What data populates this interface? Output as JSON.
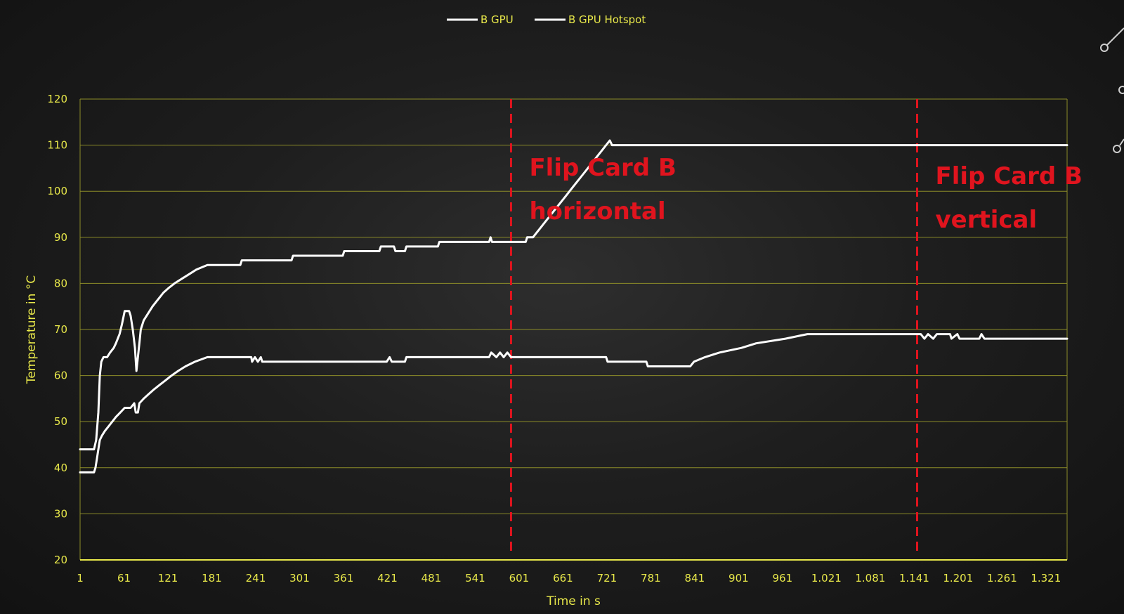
{
  "chart_data": {
    "type": "line",
    "title": "",
    "xlabel": "Time in s",
    "ylabel": "Temperature in °C",
    "xlim": [
      1,
      1350
    ],
    "ylim": [
      20,
      120
    ],
    "y_ticks": [
      20,
      30,
      40,
      50,
      60,
      70,
      80,
      90,
      100,
      110,
      120
    ],
    "x_tick_values": [
      1,
      61,
      121,
      181,
      241,
      301,
      361,
      421,
      481,
      541,
      601,
      661,
      721,
      781,
      841,
      901,
      961,
      1021,
      1081,
      1141,
      1201,
      1261,
      1321
    ],
    "x_tick_labels": [
      "1",
      "61",
      "121",
      "181",
      "241",
      "301",
      "361",
      "421",
      "481",
      "541",
      "601",
      "661",
      "721",
      "781",
      "841",
      "901",
      "961",
      "1.021",
      "1.081",
      "1.141",
      "1.201",
      "1.261",
      "1.321"
    ],
    "grid": true,
    "legend_position": "top-center",
    "colors": {
      "series_line": "#ffffff",
      "axis_text": "#e8e84a",
      "grid": "#8c8c28",
      "marker_line": "#e0141e",
      "annotation": "#e0141e"
    },
    "series": [
      {
        "name": "B GPU",
        "points": [
          [
            1,
            39
          ],
          [
            20,
            39
          ],
          [
            22,
            40
          ],
          [
            24,
            42
          ],
          [
            26,
            44
          ],
          [
            28,
            46
          ],
          [
            31,
            47
          ],
          [
            35,
            48
          ],
          [
            40,
            49
          ],
          [
            45,
            50
          ],
          [
            50,
            51
          ],
          [
            56,
            52
          ],
          [
            62,
            53
          ],
          [
            70,
            53
          ],
          [
            75,
            54
          ],
          [
            77,
            52
          ],
          [
            80,
            52
          ],
          [
            82,
            54
          ],
          [
            88,
            55
          ],
          [
            95,
            56
          ],
          [
            102,
            57
          ],
          [
            110,
            58
          ],
          [
            118,
            59
          ],
          [
            126,
            60
          ],
          [
            135,
            61
          ],
          [
            145,
            62
          ],
          [
            158,
            63
          ],
          [
            175,
            64
          ],
          [
            235,
            64
          ],
          [
            236,
            63
          ],
          [
            240,
            64
          ],
          [
            244,
            63
          ],
          [
            248,
            64
          ],
          [
            250,
            63
          ],
          [
            420,
            63
          ],
          [
            424,
            64
          ],
          [
            427,
            63
          ],
          [
            445,
            63
          ],
          [
            447,
            64
          ],
          [
            560,
            64
          ],
          [
            563,
            65
          ],
          [
            570,
            64
          ],
          [
            575,
            65
          ],
          [
            580,
            64
          ],
          [
            585,
            65
          ],
          [
            590,
            64
          ],
          [
            720,
            64
          ],
          [
            722,
            63
          ],
          [
            775,
            63
          ],
          [
            777,
            62
          ],
          [
            835,
            62
          ],
          [
            840,
            63
          ],
          [
            855,
            64
          ],
          [
            875,
            65
          ],
          [
            905,
            66
          ],
          [
            925,
            67
          ],
          [
            965,
            68
          ],
          [
            995,
            69
          ],
          [
            1140,
            69
          ],
          [
            1150,
            69
          ],
          [
            1155,
            68
          ],
          [
            1160,
            69
          ],
          [
            1167,
            68
          ],
          [
            1172,
            69
          ],
          [
            1190,
            69
          ],
          [
            1192,
            68
          ],
          [
            1200,
            69
          ],
          [
            1203,
            68
          ],
          [
            1230,
            68
          ],
          [
            1233,
            69
          ],
          [
            1237,
            68
          ],
          [
            1350,
            68
          ]
        ]
      },
      {
        "name": "B GPU Hotspot",
        "points": [
          [
            1,
            44
          ],
          [
            20,
            44
          ],
          [
            23,
            46
          ],
          [
            26,
            52
          ],
          [
            28,
            60
          ],
          [
            30,
            63
          ],
          [
            33,
            64
          ],
          [
            38,
            64
          ],
          [
            42,
            65
          ],
          [
            47,
            66
          ],
          [
            50,
            67
          ],
          [
            55,
            69
          ],
          [
            58,
            71
          ],
          [
            62,
            74
          ],
          [
            68,
            74
          ],
          [
            70,
            73
          ],
          [
            73,
            70
          ],
          [
            76,
            66
          ],
          [
            78,
            61
          ],
          [
            80,
            64
          ],
          [
            82,
            67
          ],
          [
            84,
            70
          ],
          [
            88,
            72
          ],
          [
            92,
            73
          ],
          [
            96,
            74
          ],
          [
            100,
            75
          ],
          [
            105,
            76
          ],
          [
            110,
            77
          ],
          [
            115,
            78
          ],
          [
            122,
            79
          ],
          [
            130,
            80
          ],
          [
            140,
            81
          ],
          [
            150,
            82
          ],
          [
            160,
            83
          ],
          [
            175,
            84
          ],
          [
            220,
            84
          ],
          [
            222,
            85
          ],
          [
            290,
            85
          ],
          [
            292,
            86
          ],
          [
            360,
            86
          ],
          [
            362,
            87
          ],
          [
            410,
            87
          ],
          [
            412,
            88
          ],
          [
            430,
            88
          ],
          [
            432,
            87
          ],
          [
            445,
            87
          ],
          [
            447,
            88
          ],
          [
            490,
            88
          ],
          [
            492,
            89
          ],
          [
            560,
            89
          ],
          [
            562,
            90
          ],
          [
            564,
            89
          ],
          [
            610,
            89
          ],
          [
            612,
            90
          ],
          [
            620,
            90
          ],
          [
            625,
            91
          ],
          [
            630,
            92
          ],
          [
            635,
            93
          ],
          [
            640,
            94
          ],
          [
            645,
            95
          ],
          [
            650,
            96
          ],
          [
            655,
            97
          ],
          [
            660,
            98
          ],
          [
            665,
            99
          ],
          [
            670,
            100
          ],
          [
            675,
            101
          ],
          [
            680,
            102
          ],
          [
            685,
            103
          ],
          [
            690,
            104
          ],
          [
            695,
            105
          ],
          [
            700,
            106
          ],
          [
            705,
            107
          ],
          [
            710,
            108
          ],
          [
            715,
            109
          ],
          [
            720,
            110
          ],
          [
            725,
            111
          ],
          [
            728,
            110
          ],
          [
            1350,
            110
          ]
        ]
      }
    ],
    "markers": [
      {
        "x": 590,
        "label": [
          "Flip Card B",
          "horizontal"
        ]
      },
      {
        "x": 1145,
        "label": [
          "Flip Card B",
          "vertical"
        ]
      }
    ]
  }
}
